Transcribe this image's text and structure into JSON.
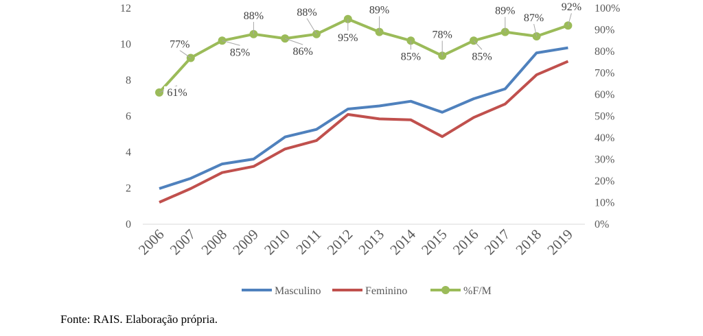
{
  "chart_data": {
    "type": "line",
    "categories": [
      "2006",
      "2007",
      "2008",
      "2009",
      "2010",
      "2011",
      "2012",
      "2013",
      "2014",
      "2015",
      "2016",
      "2017",
      "2018",
      "2019"
    ],
    "y_left": {
      "range": [
        0,
        12
      ],
      "ticks": [
        "0",
        "2",
        "4",
        "6",
        "8",
        "10",
        "12"
      ]
    },
    "y_right": {
      "range": [
        0,
        1
      ],
      "ticks": [
        "0%",
        "10%",
        "20%",
        "30%",
        "40%",
        "50%",
        "60%",
        "70%",
        "80%",
        "90%",
        "100%"
      ]
    },
    "series": [
      {
        "name": "Masculino",
        "axis": "left",
        "color": "#4F81BD",
        "values": [
          1.98,
          2.55,
          3.35,
          3.62,
          4.85,
          5.27,
          6.4,
          6.57,
          6.83,
          6.22,
          6.97,
          7.52,
          9.52,
          9.8
        ]
      },
      {
        "name": "Feminino",
        "axis": "left",
        "color": "#C0504D",
        "values": [
          1.22,
          1.98,
          2.87,
          3.21,
          4.18,
          4.65,
          6.1,
          5.85,
          5.8,
          4.87,
          5.93,
          6.68,
          8.3,
          9.05
        ]
      },
      {
        "name": "%F/M",
        "axis": "right",
        "color": "#9BBB59",
        "marker": "circle",
        "values": [
          0.61,
          0.77,
          0.85,
          0.88,
          0.86,
          0.88,
          0.95,
          0.89,
          0.85,
          0.78,
          0.85,
          0.89,
          0.87,
          0.92
        ],
        "labels": [
          "61%",
          "77%",
          "85%",
          "88%",
          "86%",
          "88%",
          "95%",
          "89%",
          "85%",
          "78%",
          "85%",
          "89%",
          "87%",
          "92%"
        ]
      }
    ],
    "legend": "bottom",
    "grid": false
  },
  "source_note": "Fonte: RAIS. Elaboração própria."
}
